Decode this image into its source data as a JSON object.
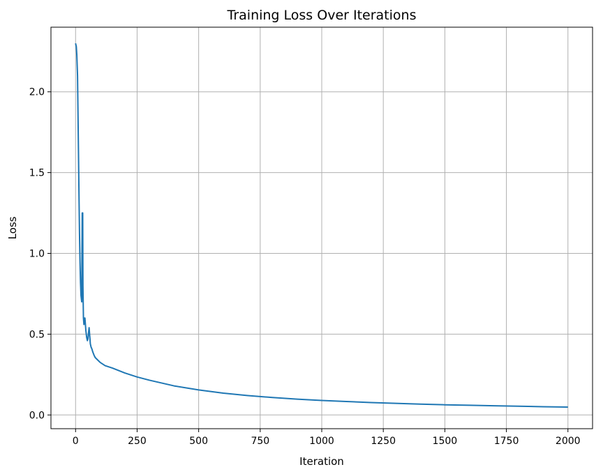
{
  "chart_data": {
    "type": "line",
    "title": "Training Loss Over Iterations",
    "xlabel": "Iteration",
    "ylabel": "Loss",
    "xlim": [
      -100,
      2100
    ],
    "ylim": [
      -0.085,
      2.4
    ],
    "xticks": [
      0,
      250,
      500,
      750,
      1000,
      1250,
      1500,
      1750,
      2000
    ],
    "yticks": [
      0.0,
      0.5,
      1.0,
      1.5,
      2.0
    ],
    "grid": true,
    "series": [
      {
        "color": "#1f77b4",
        "x": [
          0,
          3,
          5,
          8,
          10,
          12,
          14,
          16,
          18,
          20,
          22,
          25,
          27,
          29,
          30,
          32,
          34,
          36,
          38,
          40,
          42,
          45,
          48,
          50,
          52,
          55,
          58,
          60,
          63,
          66,
          70,
          75,
          80,
          90,
          100,
          120,
          150,
          200,
          250,
          300,
          400,
          500,
          600,
          700,
          800,
          900,
          1000,
          1100,
          1200,
          1300,
          1400,
          1500,
          1600,
          1700,
          1800,
          1900,
          2000
        ],
        "values": [
          2.3,
          2.28,
          2.23,
          2.1,
          1.85,
          1.6,
          1.35,
          1.12,
          0.95,
          0.82,
          0.74,
          0.7,
          1.25,
          1.25,
          0.8,
          0.6,
          0.56,
          0.6,
          0.6,
          0.56,
          0.52,
          0.48,
          0.46,
          0.47,
          0.5,
          0.54,
          0.48,
          0.44,
          0.42,
          0.41,
          0.39,
          0.37,
          0.355,
          0.34,
          0.325,
          0.305,
          0.29,
          0.26,
          0.235,
          0.215,
          0.18,
          0.155,
          0.135,
          0.12,
          0.108,
          0.098,
          0.09,
          0.083,
          0.077,
          0.072,
          0.067,
          0.063,
          0.06,
          0.057,
          0.054,
          0.051,
          0.049
        ]
      }
    ]
  }
}
